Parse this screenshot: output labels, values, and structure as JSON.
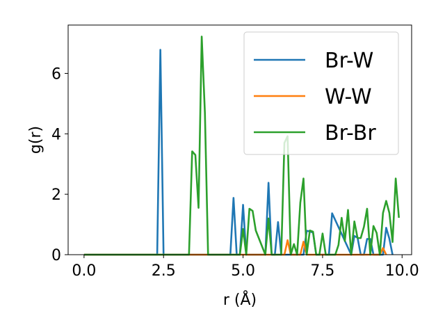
{
  "chart_data": {
    "type": "line",
    "title": "",
    "xlabel": "r (Å)",
    "ylabel": "g(r)",
    "xlim": [
      -0.5,
      10.3
    ],
    "ylim": [
      0,
      7.6
    ],
    "xticks": [
      0.0,
      2.5,
      5.0,
      7.5,
      10.0
    ],
    "xtick_labels": [
      "0.0",
      "2.5",
      "5.0",
      "7.5",
      "10.0"
    ],
    "yticks": [
      0,
      2,
      4,
      6
    ],
    "ytick_labels": [
      "0",
      "2",
      "4",
      "6"
    ],
    "grid": false,
    "legend_position": "top-right",
    "series": [
      {
        "name": "Br-W",
        "color": "#1f77b4",
        "x": [
          0.0,
          2.3,
          2.4,
          2.5,
          4.6,
          4.7,
          4.8,
          4.9,
          5.0,
          5.1,
          5.7,
          5.8,
          5.9,
          6.0,
          6.1,
          6.2,
          6.9,
          7.0,
          7.1,
          7.2,
          7.3,
          7.4,
          7.5,
          7.6,
          7.7,
          7.8,
          8.4,
          8.5,
          8.6,
          8.7,
          8.8,
          8.9,
          9.0,
          9.1,
          9.2,
          9.3,
          9.4,
          9.5,
          9.6,
          9.7
        ],
        "y": [
          0.0,
          0.0,
          6.78,
          0.0,
          0.0,
          1.88,
          0.0,
          0.0,
          1.65,
          0.0,
          0.0,
          2.38,
          0.0,
          0.0,
          1.08,
          0.0,
          0.0,
          0.79,
          0.77,
          0.73,
          0.0,
          0.0,
          0.0,
          0.0,
          0.0,
          1.37,
          0.0,
          0.62,
          0.56,
          0.0,
          0.0,
          0.52,
          0.52,
          0.0,
          0.0,
          0.0,
          0.0,
          0.89,
          0.53,
          0.0
        ]
      },
      {
        "name": "W-W",
        "color": "#ff7f0e",
        "x": [
          0.0,
          6.3,
          6.4,
          6.5,
          6.8,
          6.9,
          7.0,
          9.3,
          9.4,
          9.5
        ],
        "y": [
          0.0,
          0.0,
          0.48,
          0.0,
          0.0,
          0.43,
          0.0,
          0.0,
          0.22,
          0.0
        ]
      },
      {
        "name": "Br-Br",
        "color": "#2ca02c",
        "x": [
          0.0,
          3.3,
          3.4,
          3.5,
          3.6,
          3.7,
          3.8,
          3.9,
          4.9,
          5.0,
          5.1,
          5.2,
          5.3,
          5.4,
          5.7,
          5.8,
          5.9,
          6.2,
          6.3,
          6.4,
          6.5,
          6.6,
          6.7,
          6.8,
          6.9,
          7.0,
          7.1,
          7.2,
          7.3,
          7.4,
          7.5,
          7.6,
          7.7,
          7.8,
          7.9,
          8.0,
          8.1,
          8.2,
          8.3,
          8.4,
          8.5,
          8.6,
          8.7,
          8.8,
          8.9,
          9.0,
          9.1,
          9.2,
          9.3,
          9.4,
          9.5,
          9.6,
          9.7,
          9.8,
          9.9
        ],
        "y": [
          0.0,
          0.0,
          3.42,
          3.3,
          1.55,
          7.22,
          4.7,
          0.0,
          0.0,
          0.85,
          0.0,
          1.52,
          1.45,
          0.8,
          0.0,
          1.2,
          0.0,
          0.0,
          3.7,
          3.92,
          0.0,
          0.35,
          0.0,
          1.72,
          2.52,
          0.0,
          0.8,
          0.76,
          0.0,
          0.0,
          0.7,
          0.0,
          0.0,
          0.0,
          0.0,
          0.32,
          1.22,
          0.45,
          1.48,
          0.0,
          1.1,
          0.55,
          0.55,
          0.92,
          1.52,
          0.0,
          0.95,
          0.72,
          0.0,
          1.38,
          1.78,
          1.38,
          0.42,
          2.52,
          1.22
        ]
      }
    ]
  }
}
